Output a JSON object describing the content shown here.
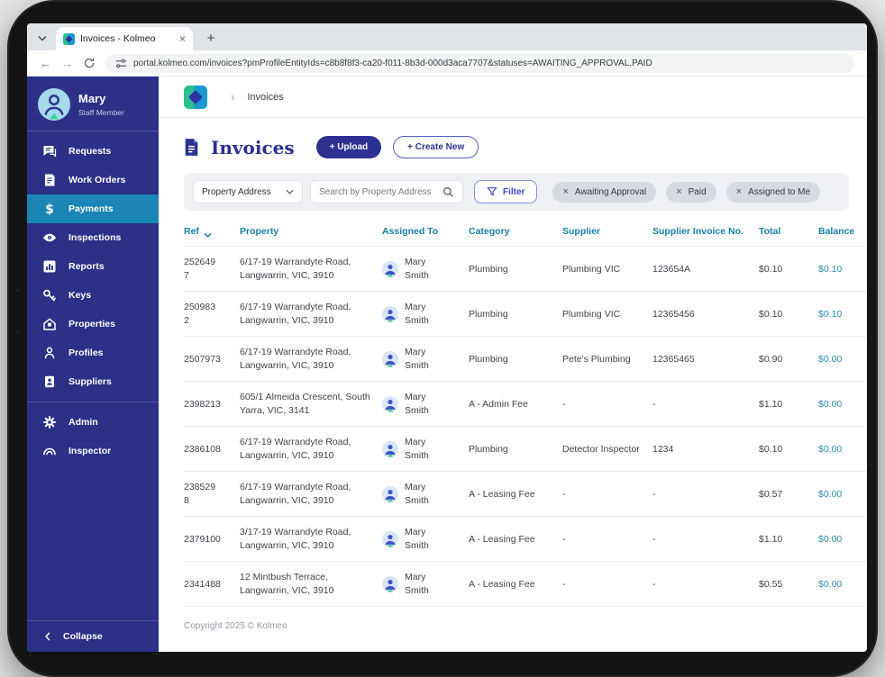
{
  "browser": {
    "tab_title": "Invoices - Kolmeo",
    "url": "portal.kolmeo.com/invoices?pmProfileEntityIds=c8b8f8f3-ca20-f011-8b3d-000d3aca7707&statuses=AWAITING_APPROVAL,PAID"
  },
  "glyphs": {
    "back": "←",
    "forward": "→",
    "plus": "+",
    "close": "×",
    "crumb_sep": "›"
  },
  "colors": {
    "sidebar": "#2c3087",
    "sidebar_active": "#1b85b5",
    "accent_indigo": "#2d3191",
    "table_header_teal": "#1780a8",
    "logo_green": "#2bbf8f",
    "logo_blue": "#1b9ad2"
  },
  "sidebar": {
    "profile": {
      "name": "Mary",
      "role": "Staff Member"
    },
    "items": [
      {
        "id": "requests",
        "label": "Requests",
        "icon": "chat",
        "active": false,
        "divider_after": false
      },
      {
        "id": "work-orders",
        "label": "Work Orders",
        "icon": "workorder",
        "active": false,
        "divider_after": false
      },
      {
        "id": "payments",
        "label": "Payments",
        "icon": "dollar",
        "active": true,
        "divider_after": false
      },
      {
        "id": "inspections",
        "label": "Inspections",
        "icon": "eye",
        "active": false,
        "divider_after": false
      },
      {
        "id": "reports",
        "label": "Reports",
        "icon": "chart",
        "active": false,
        "divider_after": false
      },
      {
        "id": "keys",
        "label": "Keys",
        "icon": "key",
        "active": false,
        "divider_after": false
      },
      {
        "id": "properties",
        "label": "Properties",
        "icon": "house",
        "active": false,
        "divider_after": false
      },
      {
        "id": "profiles",
        "label": "Profiles",
        "icon": "person",
        "active": false,
        "divider_after": false
      },
      {
        "id": "suppliers",
        "label": "Suppliers",
        "icon": "badge",
        "active": false,
        "divider_after": true
      },
      {
        "id": "admin",
        "label": "Admin",
        "icon": "gear",
        "active": false,
        "divider_after": false
      },
      {
        "id": "inspector",
        "label": "Inspector",
        "icon": "arc",
        "active": false,
        "divider_after": false
      }
    ],
    "collapse_label": "Collapse"
  },
  "header": {
    "breadcrumb": "Invoices"
  },
  "page": {
    "title": "Invoices",
    "upload_label": "+ Upload",
    "create_new_label": "+ Create New"
  },
  "filters": {
    "dropdown_value": "Property Address",
    "search_placeholder": "Search by Property Address",
    "filter_label": "Filter",
    "chips": [
      "Awaiting Approval",
      "Paid",
      "Assigned to Me"
    ]
  },
  "table": {
    "columns": [
      "Ref",
      "Property",
      "Assigned To",
      "Category",
      "Supplier",
      "Supplier Invoice No.",
      "Total",
      "Balance"
    ],
    "rows": [
      {
        "ref": "252649\n7",
        "property": "6/17-19 Warrandyte Road, Langwarrin, VIC, 3910",
        "assigned": "Mary Smith",
        "category": "Plumbing",
        "supplier": "Plumbing VIC",
        "invoice_no": "123654A",
        "total": "$0.10",
        "balance": "$0.10"
      },
      {
        "ref": "250983\n2",
        "property": "6/17-19 Warrandyte Road, Langwarrin, VIC, 3910",
        "assigned": "Mary Smith",
        "category": "Plumbing",
        "supplier": "Plumbing VIC",
        "invoice_no": "12365456",
        "total": "$0.10",
        "balance": "$0.10"
      },
      {
        "ref": "2507973",
        "property": "6/17-19 Warrandyte Road, Langwarrin, VIC, 3910",
        "assigned": "Mary Smith",
        "category": "Plumbing",
        "supplier": "Pete's Plumbing",
        "invoice_no": "12365465",
        "total": "$0.90",
        "balance": "$0.00"
      },
      {
        "ref": "2398213",
        "property": "605/1 Almeida Crescent, South Yarra, VIC, 3141",
        "assigned": "Mary Smith",
        "category": "A - Admin Fee",
        "supplier": "-",
        "invoice_no": "-",
        "total": "$1.10",
        "balance": "$0.00"
      },
      {
        "ref": "2386108",
        "property": "6/17-19 Warrandyte Road, Langwarrin, VIC, 3910",
        "assigned": "Mary Smith",
        "category": "Plumbing",
        "supplier": "Detector Inspector",
        "invoice_no": "1234",
        "total": "$0.10",
        "balance": "$0.00"
      },
      {
        "ref": "238529\n8",
        "property": "6/17-19 Warrandyte Road, Langwarrin, VIC, 3910",
        "assigned": "Mary Smith",
        "category": "A - Leasing Fee",
        "supplier": "-",
        "invoice_no": "-",
        "total": "$0.57",
        "balance": "$0.00"
      },
      {
        "ref": "2379100",
        "property": "3/17-19 Warrandyte Road, Langwarrin, VIC, 3910",
        "assigned": "Mary Smith",
        "category": "A - Leasing Fee",
        "supplier": "-",
        "invoice_no": "-",
        "total": "$1.10",
        "balance": "$0.00"
      },
      {
        "ref": "2341488",
        "property": "12 Mintbush Terrace, Langwarrin, VIC, 3910",
        "assigned": "Mary Smith",
        "category": "A - Leasing Fee",
        "supplier": "-",
        "invoice_no": "-",
        "total": "$0.55",
        "balance": "$0.00"
      }
    ]
  },
  "footer": {
    "copyright": "Copyright 2025 © Kolmeo"
  }
}
